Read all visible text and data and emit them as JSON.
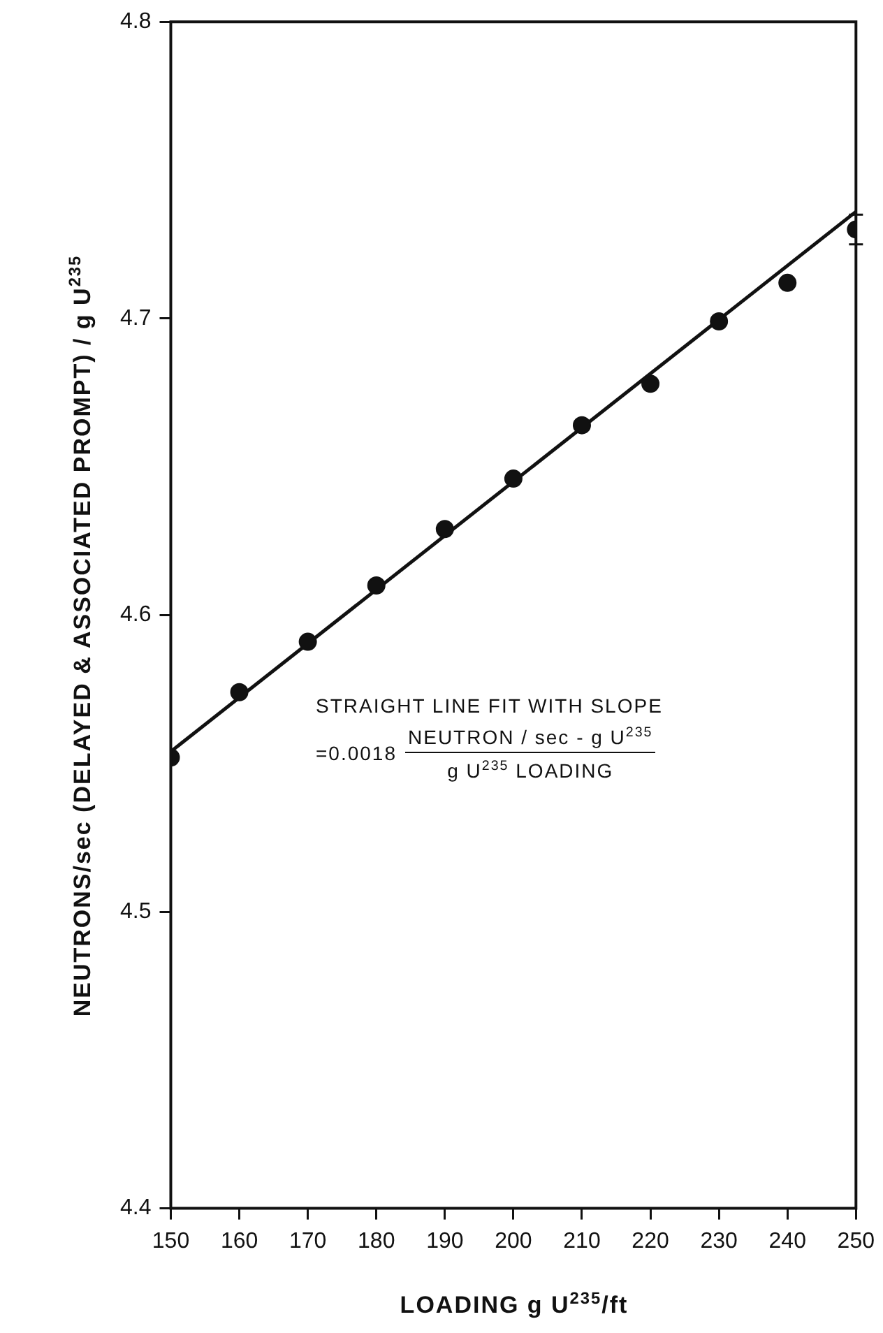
{
  "chart_data": {
    "type": "scatter",
    "xlabel": "LOADING g U$^{235}$/ft",
    "ylabel": "NEUTRONS/sec (DELAYED & ASSOCIATED PROMPT) / g U$^{235}$",
    "x": [
      150,
      160,
      170,
      180,
      190,
      200,
      210,
      220,
      230,
      240,
      250
    ],
    "series": [
      {
        "color": "#111111",
        "marker": "circle",
        "values": [
          4.552,
          4.574,
          4.591,
          4.61,
          4.629,
          4.646,
          4.664,
          4.678,
          4.699,
          4.712,
          4.73
        ],
        "errors": [
          null,
          null,
          null,
          null,
          null,
          null,
          null,
          null,
          null,
          null,
          [
            4.725,
            4.735
          ]
        ]
      },
      {
        "type": "line",
        "color": "#111111",
        "marker": "none",
        "line_style": "solid",
        "x": [
          150,
          250
        ],
        "values": [
          4.554,
          4.736
        ]
      }
    ],
    "annotations": [
      "STRAIGHT LINE FIT WITH SLOPE",
      "=0.0018",
      "NEUTRON / sec - g U$^{235}$",
      "g U$^{235}$ LOADING"
    ],
    "xlim": [
      150,
      250
    ],
    "xticks": [
      150,
      160,
      170,
      180,
      190,
      200,
      210,
      220,
      230,
      240,
      250
    ],
    "ylim": [
      4.4,
      4.8
    ],
    "yticks": [
      4.4,
      4.5,
      4.6,
      4.7,
      4.8
    ],
    "grid": false,
    "legend": false
  }
}
